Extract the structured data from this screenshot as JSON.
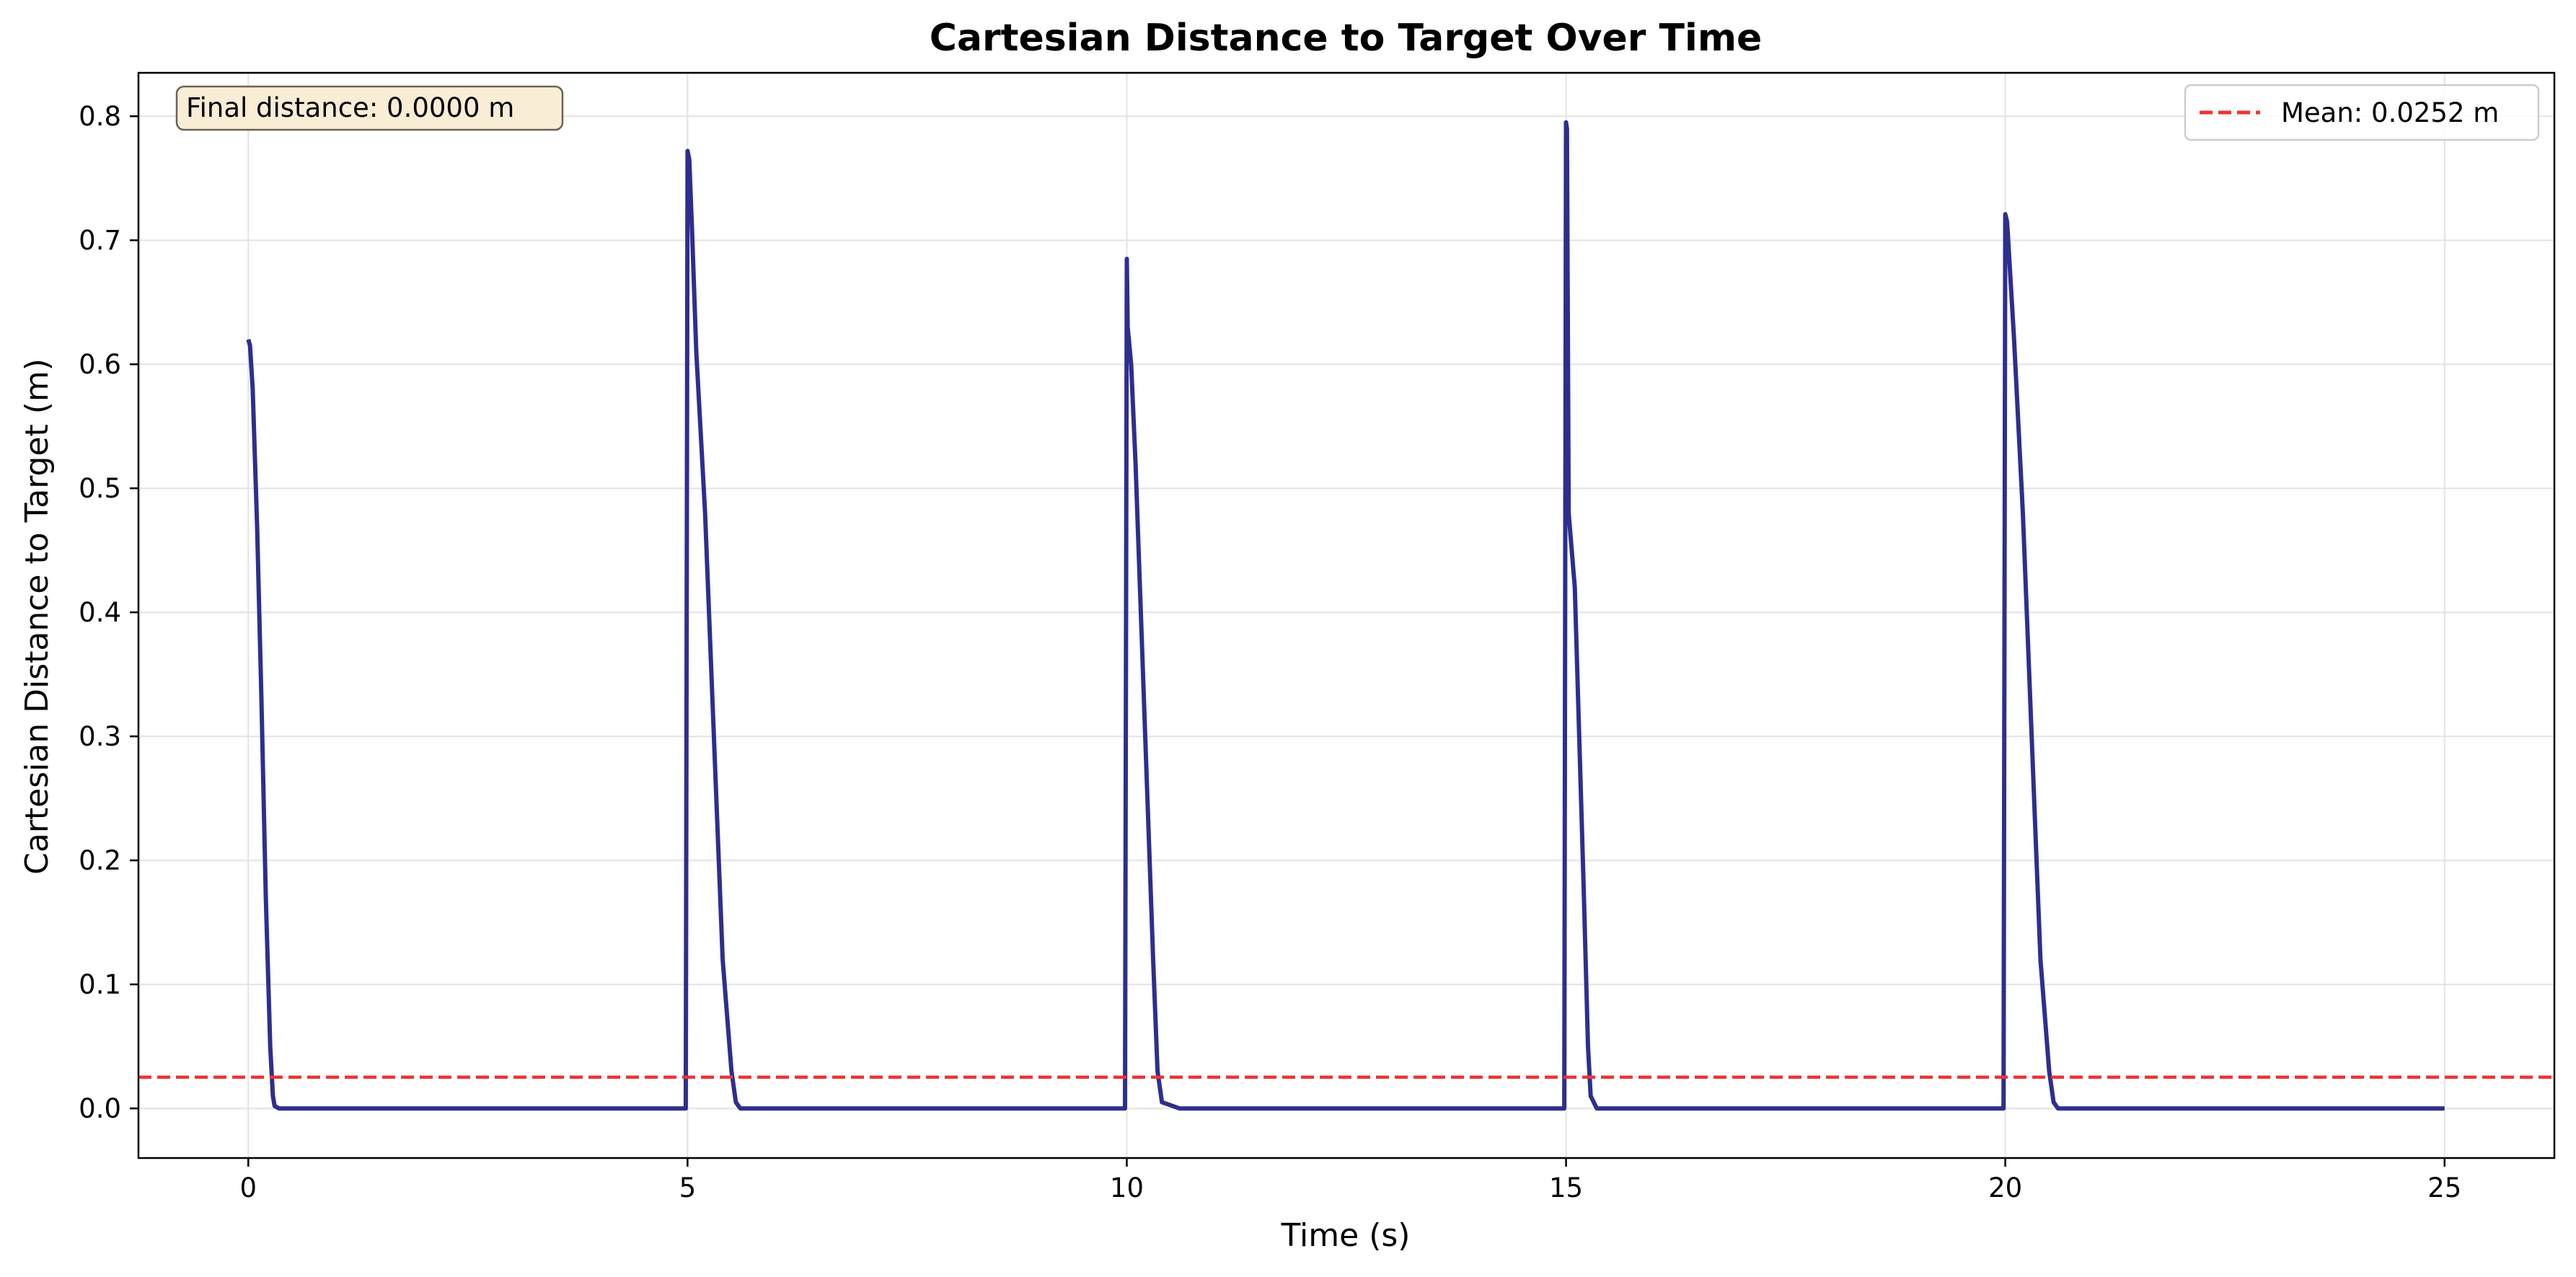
{
  "chart_data": {
    "type": "line",
    "title": "Cartesian Distance to Target Over Time",
    "xlabel": "Time (s)",
    "ylabel": "Cartesian Distance to Target (m)",
    "xlim": [
      -1.25,
      26.25
    ],
    "ylim": [
      -0.04,
      0.835
    ],
    "xticks": [
      0,
      5,
      10,
      15,
      20,
      25
    ],
    "yticks": [
      0.0,
      0.1,
      0.2,
      0.3,
      0.4,
      0.5,
      0.6,
      0.7,
      0.8
    ],
    "xtick_labels": [
      "0",
      "5",
      "10",
      "15",
      "20",
      "25"
    ],
    "ytick_labels": [
      "0.0",
      "0.1",
      "0.2",
      "0.3",
      "0.4",
      "0.5",
      "0.6",
      "0.7",
      "0.8"
    ],
    "grid": true,
    "legend_position": "top-right",
    "series": [
      {
        "name": "",
        "color": "#2e2e8f",
        "x": [
          0.0,
          0.02,
          0.05,
          0.1,
          0.15,
          0.2,
          0.25,
          0.28,
          0.3,
          0.35,
          0.5,
          4.98,
          5.0,
          5.02,
          5.05,
          5.1,
          5.2,
          5.3,
          5.4,
          5.5,
          5.55,
          5.6,
          5.8,
          9.98,
          10.0,
          10.01,
          10.05,
          10.1,
          10.2,
          10.3,
          10.35,
          10.4,
          10.6,
          14.98,
          15.0,
          15.01,
          15.03,
          15.1,
          15.2,
          15.25,
          15.28,
          15.35,
          15.6,
          19.98,
          20.0,
          20.02,
          20.05,
          20.1,
          20.2,
          20.3,
          20.4,
          20.5,
          20.55,
          20.6,
          20.8,
          25.0
        ],
        "values": [
          0.62,
          0.615,
          0.58,
          0.47,
          0.33,
          0.17,
          0.05,
          0.01,
          0.002,
          0.0,
          0.0,
          0.0,
          0.772,
          0.765,
          0.71,
          0.61,
          0.48,
          0.3,
          0.12,
          0.03,
          0.005,
          0.0,
          0.0,
          0.0,
          0.685,
          0.63,
          0.6,
          0.52,
          0.32,
          0.12,
          0.03,
          0.005,
          0.0,
          0.0,
          0.795,
          0.79,
          0.48,
          0.42,
          0.18,
          0.05,
          0.01,
          0.0,
          0.0,
          0.0,
          0.721,
          0.715,
          0.68,
          0.62,
          0.48,
          0.3,
          0.12,
          0.03,
          0.005,
          0.0,
          0.0,
          0.0
        ]
      }
    ],
    "mean_line": {
      "label": "Mean: 0.0252 m",
      "value": 0.0252,
      "color": "#ee3333"
    },
    "annotation": {
      "text": "Final distance: 0.0000 m",
      "position": "top-left",
      "bg_color": "#f9edd6",
      "border_color": "#6b6255"
    }
  }
}
